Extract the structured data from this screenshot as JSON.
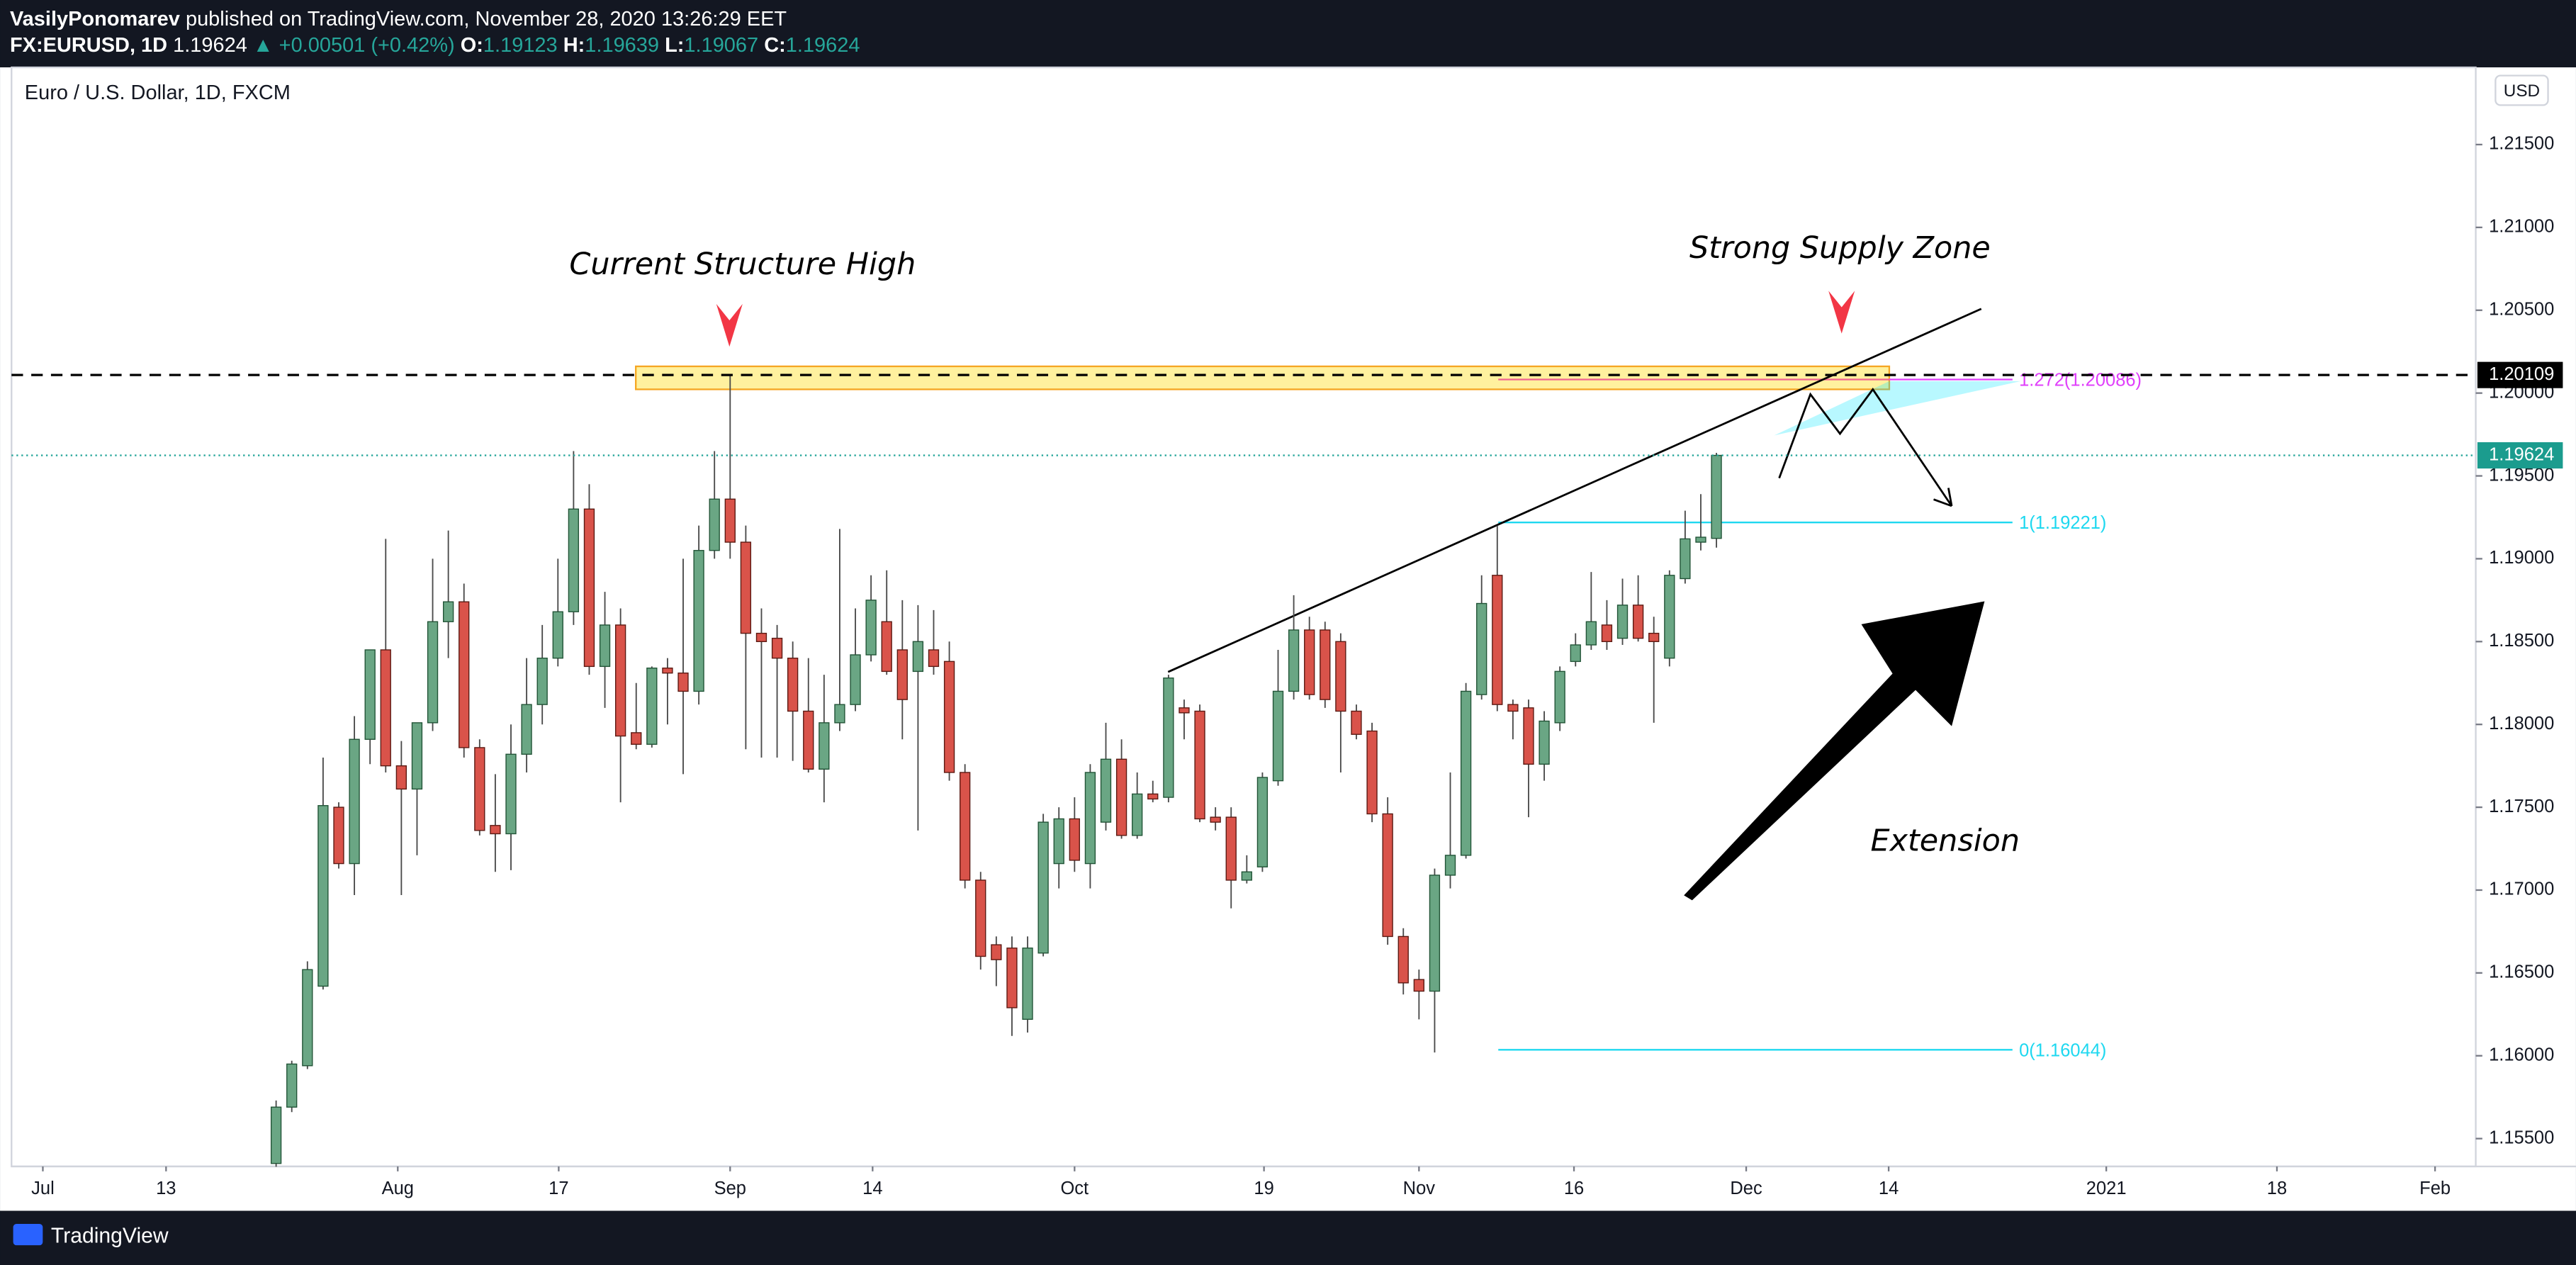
{
  "chart_data": {
    "type": "candlestick",
    "author": "VasilyPonomarev",
    "published": "published on TradingView.com, November 28, 2020 13:26:29 EET",
    "symbol": "FX:EURUSD, 1D",
    "arrow": "▲",
    "change": "+0.00501 (+0.42%)",
    "o_label": "O:",
    "h_label": "H:",
    "l_label": "L:",
    "c_label": "C:",
    "source": "Euro / U.S. Dollar, 1D, FXCM",
    "currency": "USD",
    "brand": "TradingView",
    "annotations": [
      "Current Structure High",
      "Strong Supply Zone",
      "Extension"
    ],
    "fib_labels": [
      "1.272(1.20086)",
      "1(1.19221)",
      "0(1.16044)"
    ],
    "hline": 1.20109,
    "up_color": "#6aa684",
    "down_color": "#d9534a",
    "open": [
      1.1535,
      1.1569,
      1.1594,
      1.1642,
      1.175,
      1.1716,
      1.1791,
      1.1845,
      1.1775,
      1.1761,
      1.1801,
      1.1862,
      1.1874,
      1.1786,
      1.1739,
      1.1734,
      1.1782,
      1.1812,
      1.184,
      1.1868,
      1.193,
      1.1835,
      1.186,
      1.1795,
      1.1788,
      1.1834,
      1.1831,
      1.182,
      1.1905,
      1.1936,
      1.191,
      1.1855,
      1.1852,
      1.184,
      1.1808,
      1.1773,
      1.1801,
      1.1812,
      1.1842,
      1.1862,
      1.1845,
      1.1832,
      1.1845,
      1.1838,
      1.1771,
      1.1706,
      1.1667,
      1.1665,
      1.1622,
      1.1662,
      1.1716,
      1.1743,
      1.1716,
      1.1741,
      1.1779,
      1.1733,
      1.1758,
      1.1756,
      1.181,
      1.1808,
      1.1744,
      1.1744,
      1.1706,
      1.1714,
      1.1766,
      1.182,
      1.1857,
      1.1857,
      1.185,
      1.1808,
      1.1796,
      1.1746,
      1.1672,
      1.1646,
      1.1639,
      1.1709,
      1.1721,
      1.1818,
      1.189,
      1.1812,
      1.181,
      1.1776,
      1.1801,
      1.1838,
      1.1848,
      1.186,
      1.1852,
      1.1872,
      1.1855,
      1.184,
      1.1888,
      1.191,
      1.19123
    ],
    "high": [
      1.1573,
      1.1597,
      1.1657,
      1.178,
      1.1753,
      1.1805,
      1.1845,
      1.1912,
      1.179,
      1.1801,
      1.19,
      1.1917,
      1.1885,
      1.1791,
      1.177,
      1.18,
      1.184,
      1.186,
      1.19,
      1.1965,
      1.1945,
      1.188,
      1.187,
      1.1825,
      1.1835,
      1.184,
      1.19,
      1.192,
      1.1965,
      1.2011,
      1.192,
      1.187,
      1.186,
      1.185,
      1.184,
      1.183,
      1.1918,
      1.187,
      1.189,
      1.1893,
      1.1875,
      1.1872,
      1.1869,
      1.185,
      1.1776,
      1.1711,
      1.1672,
      1.1672,
      1.1672,
      1.1746,
      1.175,
      1.1756,
      1.1776,
      1.1801,
      1.1791,
      1.1771,
      1.1766,
      1.183,
      1.1815,
      1.1812,
      1.175,
      1.175,
      1.1721,
      1.1771,
      1.1845,
      1.1878,
      1.1865,
      1.1862,
      1.1855,
      1.1812,
      1.1801,
      1.1756,
      1.1677,
      1.1652,
      1.1713,
      1.1771,
      1.1825,
      1.189,
      1.192,
      1.1815,
      1.1815,
      1.1808,
      1.1835,
      1.1855,
      1.1892,
      1.1875,
      1.1888,
      1.189,
      1.1865,
      1.1893,
      1.1929,
      1.1939,
      1.19639
    ],
    "low": [
      1.1533,
      1.1566,
      1.1592,
      1.164,
      1.1713,
      1.1697,
      1.1776,
      1.1771,
      1.1697,
      1.1721,
      1.1796,
      1.184,
      1.178,
      1.1733,
      1.1711,
      1.1712,
      1.1771,
      1.18,
      1.1835,
      1.186,
      1.183,
      1.181,
      1.1753,
      1.1785,
      1.1786,
      1.18,
      1.177,
      1.1812,
      1.19,
      1.19,
      1.1785,
      1.178,
      1.178,
      1.1778,
      1.1771,
      1.1753,
      1.1796,
      1.1808,
      1.1838,
      1.183,
      1.1791,
      1.1736,
      1.183,
      1.1766,
      1.1701,
      1.1652,
      1.1642,
      1.1612,
      1.1614,
      1.166,
      1.1701,
      1.1711,
      1.1701,
      1.1736,
      1.1731,
      1.1731,
      1.1753,
      1.1753,
      1.1791,
      1.1741,
      1.1736,
      1.1689,
      1.1704,
      1.1711,
      1.1763,
      1.1815,
      1.1815,
      1.181,
      1.1771,
      1.1791,
      1.1741,
      1.1667,
      1.1637,
      1.1622,
      1.1602,
      1.1701,
      1.1719,
      1.1815,
      1.1808,
      1.1791,
      1.1744,
      1.1766,
      1.1796,
      1.1835,
      1.1845,
      1.1845,
      1.1848,
      1.185,
      1.1801,
      1.1835,
      1.1885,
      1.1905,
      1.19067
    ],
    "close": [
      1.1569,
      1.1595,
      1.1652,
      1.1751,
      1.1716,
      1.1791,
      1.1845,
      1.1775,
      1.1761,
      1.1801,
      1.1862,
      1.1874,
      1.1786,
      1.1736,
      1.1734,
      1.1782,
      1.1812,
      1.184,
      1.1868,
      1.193,
      1.1835,
      1.186,
      1.1793,
      1.1788,
      1.1834,
      1.1831,
      1.182,
      1.1905,
      1.1936,
      1.191,
      1.1855,
      1.185,
      1.184,
      1.1808,
      1.1773,
      1.1801,
      1.1812,
      1.1842,
      1.1875,
      1.1832,
      1.1815,
      1.185,
      1.1835,
      1.1771,
      1.1706,
      1.166,
      1.1658,
      1.1629,
      1.1665,
      1.1741,
      1.1743,
      1.1718,
      1.1771,
      1.1779,
      1.1733,
      1.1758,
      1.1755,
      1.1828,
      1.1807,
      1.1743,
      1.1741,
      1.1706,
      1.1711,
      1.1768,
      1.182,
      1.1857,
      1.1818,
      1.1815,
      1.1808,
      1.1794,
      1.1746,
      1.1672,
      1.1644,
      1.1639,
      1.1709,
      1.1721,
      1.182,
      1.1873,
      1.1812,
      1.1808,
      1.1776,
      1.1802,
      1.1832,
      1.1848,
      1.1862,
      1.185,
      1.1872,
      1.1852,
      1.185,
      1.189,
      1.1912,
      1.1913,
      1.19624
    ],
    "xlim": [
      -16.9,
      140.5
    ],
    "xticks": [
      {
        "value": -14.9,
        "label": "Jul"
      },
      {
        "value": -7.03,
        "label": "13"
      },
      {
        "value": 7.77,
        "label": "Aug"
      },
      {
        "value": 18.05,
        "label": "17"
      },
      {
        "value": 29.0,
        "label": "Sep"
      },
      {
        "value": 38.1,
        "label": "14"
      },
      {
        "value": 51.0,
        "label": "Oct"
      },
      {
        "value": 63.1,
        "label": "19"
      },
      {
        "value": 73.0,
        "label": "Nov"
      },
      {
        "value": 82.9,
        "label": "16"
      },
      {
        "value": 93.9,
        "label": "Dec"
      },
      {
        "value": 103.0,
        "label": "14"
      },
      {
        "value": 116.9,
        "label": "2021"
      },
      {
        "value": 127.8,
        "label": "18"
      },
      {
        "value": 137.9,
        "label": "Feb"
      }
    ],
    "ylim": [
      1.15332,
      1.21966
    ],
    "yticks": [
      {
        "value": 1.155,
        "label": "1.15500"
      },
      {
        "value": 1.16,
        "label": "1.16000"
      },
      {
        "value": 1.165,
        "label": "1.16500"
      },
      {
        "value": 1.17,
        "label": "1.17000"
      },
      {
        "value": 1.175,
        "label": "1.17500"
      },
      {
        "value": 1.18,
        "label": "1.18000"
      },
      {
        "value": 1.185,
        "label": "1.18500"
      },
      {
        "value": 1.19,
        "label": "1.19000"
      },
      {
        "value": 1.195,
        "label": "1.19500"
      },
      {
        "value": 1.2,
        "label": "1.20000"
      },
      {
        "value": 1.205,
        "label": "1.20500"
      },
      {
        "value": 1.21,
        "label": "1.21000"
      },
      {
        "value": 1.215,
        "label": "1.21500"
      }
    ]
  }
}
